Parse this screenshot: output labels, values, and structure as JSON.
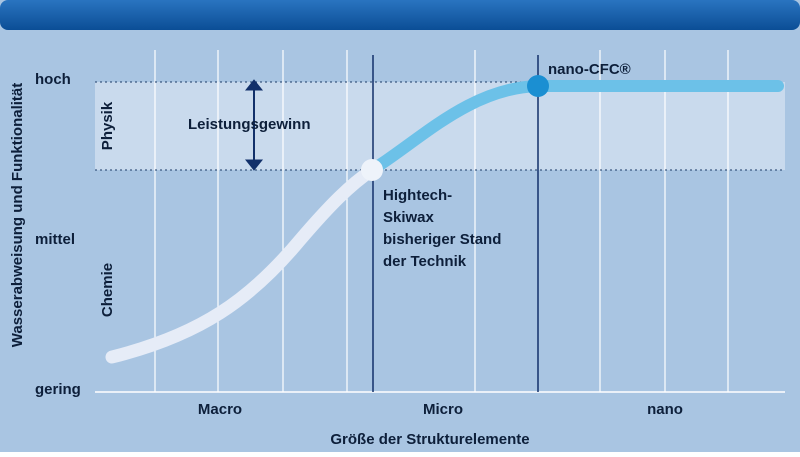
{
  "y_axis": {
    "title": "Wasserabweisung und Funktionalität",
    "labels": [
      "hoch",
      "mittel",
      "gering"
    ]
  },
  "x_axis": {
    "title": "Größe der Strukturelemente",
    "labels": [
      "Macro",
      "Micro",
      "nano"
    ]
  },
  "zones": [
    "Physik",
    "Chemie"
  ],
  "annotations": {
    "gain": "Leistungsgewinn",
    "hightech": [
      "Hightech-",
      "Skiwax",
      "bisheriger Stand",
      "der Technik"
    ],
    "nano": "nano-CFC®"
  }
}
